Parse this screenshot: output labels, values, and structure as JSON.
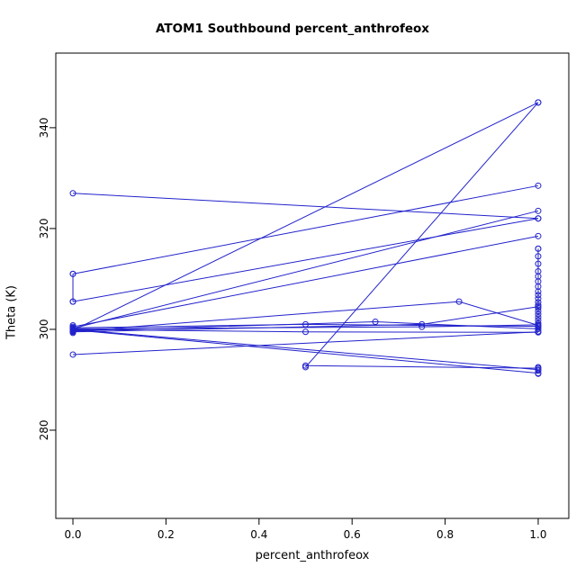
{
  "chart_data": {
    "type": "line",
    "title": "ATOM1 Southbound percent_anthrofeox",
    "xlabel": "percent_anthrofeox",
    "ylabel": "Theta (K)",
    "x_tick_values": [
      0.0,
      0.2,
      0.4,
      0.6,
      0.8,
      1.0
    ],
    "x_tick_labels": [
      "0.0",
      "0.2",
      "0.4",
      "0.6",
      "0.8",
      "1.0"
    ],
    "y_tick_values": [
      280,
      300,
      320,
      340
    ],
    "y_tick_labels": [
      "280",
      "300",
      "320",
      "340"
    ],
    "x_range": [
      -0.0368,
      1.0658
    ],
    "y_range": [
      262.5,
      354.8
    ],
    "grid": false,
    "legend": null,
    "line_color": "#2222CC",
    "marker": "open-circle",
    "series": [
      {
        "x": [
          0,
          1
        ],
        "y": [
          327,
          322
        ]
      },
      {
        "x": [
          0,
          1
        ],
        "y": [
          299.8,
          345
        ]
      },
      {
        "x": [
          0.5,
          1
        ],
        "y": [
          292.5,
          345
        ]
      },
      {
        "x": [
          0,
          1
        ],
        "y": [
          311,
          328.5
        ]
      },
      {
        "x": [
          0,
          1
        ],
        "y": [
          305.5,
          322
        ]
      },
      {
        "x": [
          0,
          1
        ],
        "y": [
          300.2,
          323.5
        ]
      },
      {
        "x": [
          0,
          1
        ],
        "y": [
          300.5,
          318.5
        ]
      },
      {
        "x": [
          0,
          0.5,
          1
        ],
        "y": [
          300.3,
          301,
          300.6
        ]
      },
      {
        "x": [
          0,
          0.5,
          1
        ],
        "y": [
          300,
          299.5,
          299.4
        ]
      },
      {
        "x": [
          0,
          0.65,
          1
        ],
        "y": [
          299.7,
          301.5,
          300.1
        ]
      },
      {
        "x": [
          0,
          0.75,
          1
        ],
        "y": [
          299.5,
          301,
          304.5
        ]
      },
      {
        "x": [
          0,
          0.75,
          1
        ],
        "y": [
          300.1,
          300.5,
          300.9
        ]
      },
      {
        "x": [
          0,
          1
        ],
        "y": [
          295,
          299.5
        ]
      },
      {
        "x": [
          0,
          1
        ],
        "y": [
          300,
          292
        ]
      },
      {
        "x": [
          0,
          1
        ],
        "y": [
          299.9,
          291.3
        ]
      },
      {
        "x": [
          0.5,
          1
        ],
        "y": [
          292.8,
          292.3
        ]
      },
      {
        "x": [
          0,
          0.83,
          1
        ],
        "y": [
          299.6,
          305.5,
          300.8
        ]
      },
      {
        "x": [
          1,
          1
        ],
        "y": [
          299.5,
          316
        ]
      },
      {
        "x": [
          0,
          0
        ],
        "y": [
          305.5,
          311
        ]
      }
    ],
    "points": [
      [
        1,
        316
      ],
      [
        1,
        314.5
      ],
      [
        1,
        313
      ],
      [
        1,
        311.5
      ],
      [
        1,
        310.5
      ],
      [
        1,
        309.5
      ],
      [
        1,
        308.5
      ],
      [
        1,
        307.5
      ],
      [
        1,
        306.8
      ],
      [
        1,
        306.1
      ],
      [
        1,
        305.4
      ],
      [
        1,
        304.8
      ],
      [
        1,
        304.2
      ],
      [
        1,
        303.6
      ],
      [
        1,
        303
      ],
      [
        1,
        302.4
      ],
      [
        1,
        301.8
      ],
      [
        1,
        301.2
      ],
      [
        1,
        300.6
      ],
      [
        1,
        300.1
      ],
      [
        1,
        299.6
      ],
      [
        1,
        292.5
      ],
      [
        1,
        291.8
      ],
      [
        1,
        291.2
      ],
      [
        0,
        300.8
      ],
      [
        0,
        299.3
      ]
    ]
  }
}
